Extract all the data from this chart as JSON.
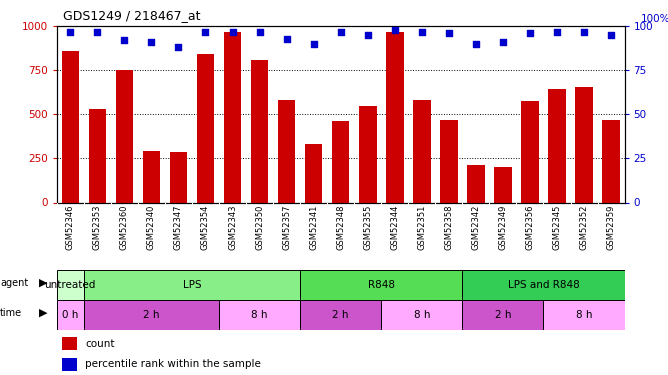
{
  "title": "GDS1249 / 218467_at",
  "samples": [
    "GSM52346",
    "GSM52353",
    "GSM52360",
    "GSM52340",
    "GSM52347",
    "GSM52354",
    "GSM52343",
    "GSM52350",
    "GSM52357",
    "GSM52341",
    "GSM52348",
    "GSM52355",
    "GSM52344",
    "GSM52351",
    "GSM52358",
    "GSM52342",
    "GSM52349",
    "GSM52356",
    "GSM52345",
    "GSM52352",
    "GSM52359"
  ],
  "counts": [
    860,
    530,
    750,
    290,
    285,
    840,
    970,
    810,
    580,
    330,
    465,
    545,
    970,
    580,
    470,
    215,
    200,
    575,
    645,
    655,
    470
  ],
  "percentiles": [
    97,
    97,
    92,
    91,
    88,
    97,
    97,
    97,
    93,
    90,
    97,
    95,
    98,
    97,
    96,
    90,
    91,
    96,
    97,
    97,
    95
  ],
  "bar_color": "#cc0000",
  "percentile_color": "#0000cc",
  "ylim_left": [
    0,
    1000
  ],
  "ylim_right": [
    0,
    100
  ],
  "yticks_left": [
    0,
    250,
    500,
    750,
    1000
  ],
  "yticks_right": [
    0,
    25,
    50,
    75,
    100
  ],
  "agent_groups": [
    {
      "label": "untreated",
      "start": 0,
      "end": 1,
      "color": "#ccffcc"
    },
    {
      "label": "LPS",
      "start": 1,
      "end": 9,
      "color": "#88ee88"
    },
    {
      "label": "R848",
      "start": 9,
      "end": 15,
      "color": "#55dd55"
    },
    {
      "label": "LPS and R848",
      "start": 15,
      "end": 21,
      "color": "#33cc55"
    }
  ],
  "time_groups": [
    {
      "label": "0 h",
      "start": 0,
      "end": 1,
      "color": "#ffaaff"
    },
    {
      "label": "2 h",
      "start": 1,
      "end": 6,
      "color": "#cc55cc"
    },
    {
      "label": "8 h",
      "start": 6,
      "end": 9,
      "color": "#ffaaff"
    },
    {
      "label": "2 h",
      "start": 9,
      "end": 12,
      "color": "#cc55cc"
    },
    {
      "label": "8 h",
      "start": 12,
      "end": 15,
      "color": "#ffaaff"
    },
    {
      "label": "2 h",
      "start": 15,
      "end": 18,
      "color": "#cc55cc"
    },
    {
      "label": "8 h",
      "start": 18,
      "end": 21,
      "color": "#ffaaff"
    }
  ],
  "sample_bg": "#d0d0d0",
  "plot_bg": "white",
  "fig_bg": "white"
}
